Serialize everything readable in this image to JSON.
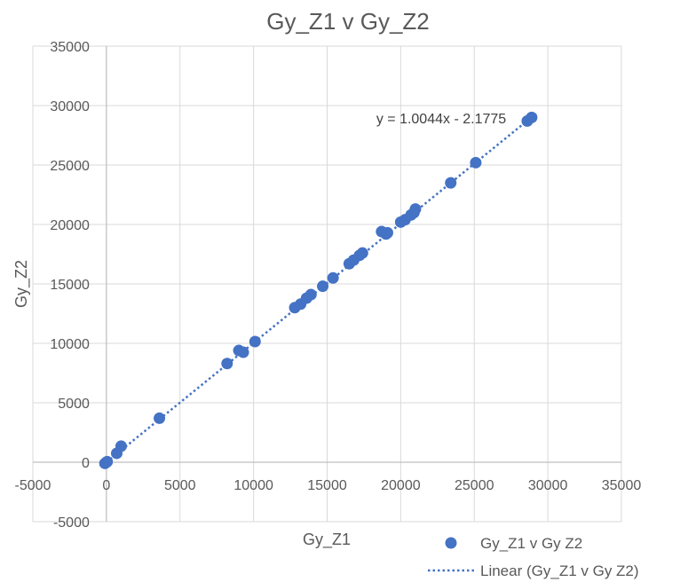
{
  "chart_data": {
    "type": "scatter",
    "title": "Gy_Z1 v Gy_Z2",
    "xlabel": "Gy_Z1",
    "ylabel": "Gy_Z2",
    "xlim": [
      -5000,
      35000
    ],
    "ylim": [
      -5000,
      35000
    ],
    "x_ticks": [
      -5000,
      0,
      5000,
      10000,
      15000,
      20000,
      25000,
      30000,
      35000
    ],
    "y_ticks": [
      -5000,
      0,
      5000,
      10000,
      15000,
      20000,
      25000,
      30000,
      35000
    ],
    "grid": true,
    "marker_color": "#4472C4",
    "series": [
      {
        "name": "Gy_Z1 v Gy Z2",
        "points": [
          [
            -100,
            -100
          ],
          [
            0,
            0
          ],
          [
            50,
            50
          ],
          [
            700,
            750
          ],
          [
            1000,
            1350
          ],
          [
            3600,
            3700
          ],
          [
            8200,
            8300
          ],
          [
            9000,
            9400
          ],
          [
            9300,
            9250
          ],
          [
            10100,
            10150
          ],
          [
            12800,
            13000
          ],
          [
            13200,
            13300
          ],
          [
            13600,
            13800
          ],
          [
            13900,
            14100
          ],
          [
            14700,
            14800
          ],
          [
            15400,
            15500
          ],
          [
            16500,
            16700
          ],
          [
            16800,
            17000
          ],
          [
            17200,
            17400
          ],
          [
            17400,
            17600
          ],
          [
            18700,
            19400
          ],
          [
            19000,
            19200
          ],
          [
            19100,
            19300
          ],
          [
            20000,
            20200
          ],
          [
            20300,
            20400
          ],
          [
            20700,
            20800
          ],
          [
            20900,
            21000
          ],
          [
            21000,
            21300
          ],
          [
            23400,
            23500
          ],
          [
            25100,
            25200
          ],
          [
            28600,
            28700
          ],
          [
            28900,
            29000
          ]
        ]
      }
    ],
    "trendline": {
      "name": "Linear (Gy_Z1 v Gy Z2)",
      "type": "linear",
      "slope": 1.0044,
      "intercept": -2.1775,
      "x_range": [
        0,
        28900
      ],
      "equation_label": "y = 1.0044x - 2.1775"
    },
    "legend_position": "bottom-right"
  }
}
